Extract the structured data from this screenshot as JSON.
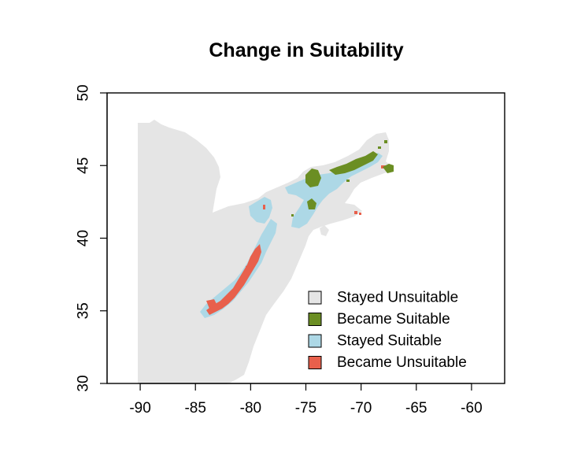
{
  "map": {
    "title": "Change in Suitability",
    "x_ticks": [
      "-90",
      "-85",
      "-80",
      "-75",
      "-70",
      "-65",
      "-60"
    ],
    "y_ticks": [
      "30",
      "35",
      "40",
      "45",
      "50"
    ]
  },
  "legend": {
    "placement": "bottom-right",
    "items": [
      {
        "label": "Stayed Unsuitable",
        "color": "#e5e5e5"
      },
      {
        "label": "Became Suitable",
        "color": "#6b8e23"
      },
      {
        "label": "Stayed Suitable",
        "color": "#add8e6"
      },
      {
        "label": "Became Unsuitable",
        "color": "#e8604c"
      }
    ]
  },
  "chart_data": {
    "type": "heatmap",
    "title": "Change in Suitability",
    "xlabel": "",
    "ylabel": "",
    "xlim": [
      -93,
      -57
    ],
    "ylim": [
      30,
      50
    ],
    "x_ticks": [
      -90,
      -85,
      -80,
      -75,
      -70,
      -65,
      -60
    ],
    "y_ticks": [
      30,
      35,
      40,
      45,
      50
    ],
    "grid": false,
    "legend_placement": "bottom-right",
    "categories": [
      "Stayed Unsuitable",
      "Became Suitable",
      "Stayed Suitable",
      "Became Unsuitable"
    ],
    "colors": [
      "#e5e5e5",
      "#6b8e23",
      "#add8e6",
      "#e8604c"
    ]
  }
}
